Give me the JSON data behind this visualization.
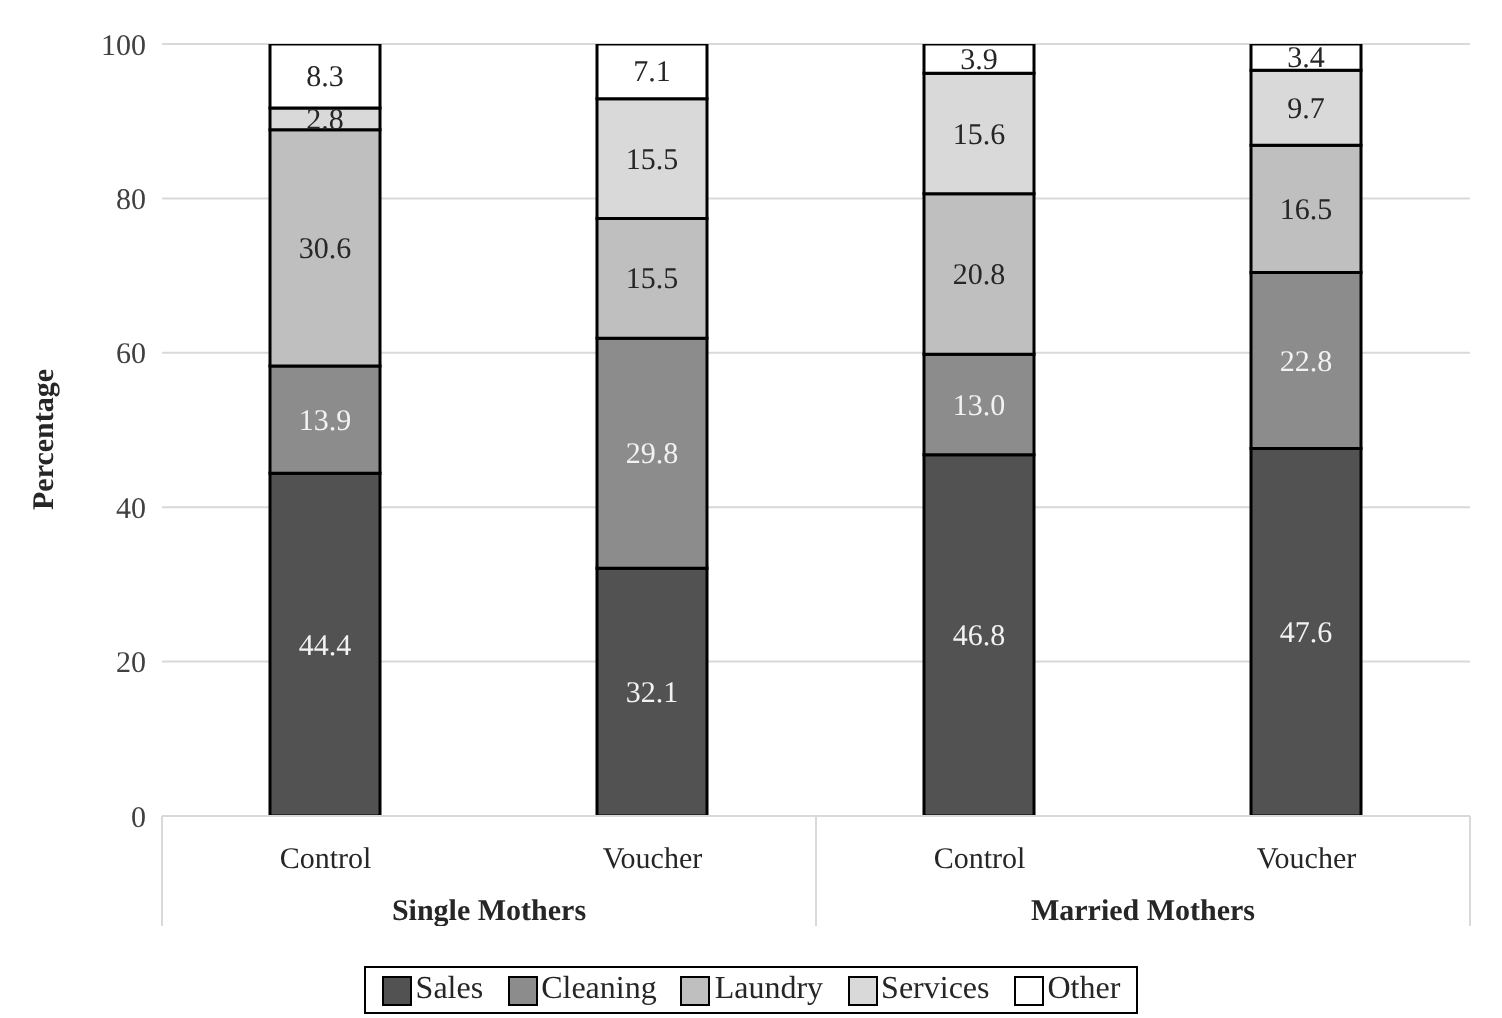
{
  "chart_data": {
    "type": "bar",
    "stacked": true,
    "ylabel": "Percentage",
    "categories": [
      "Control",
      "Voucher",
      "Control",
      "Voucher"
    ],
    "annotations": [
      "Single Mothers",
      "Married Mothers"
    ],
    "series": [
      {
        "name": "Sales",
        "color": "#525252",
        "values": [
          44.4,
          32.1,
          46.8,
          47.6
        ],
        "value_labels": [
          "44.4",
          "32.1",
          "46.8",
          "47.6"
        ]
      },
      {
        "name": "Cleaning",
        "color": "#8c8c8c",
        "values": [
          13.9,
          29.8,
          13.0,
          22.8
        ],
        "value_labels": [
          "13.9",
          "29.8",
          "13.0",
          "22.8"
        ]
      },
      {
        "name": "Laundry",
        "color": "#bfbfbf",
        "values": [
          30.6,
          15.5,
          20.8,
          16.5
        ],
        "value_labels": [
          "30.6",
          "15.5",
          "20.8",
          "16.5"
        ]
      },
      {
        "name": "Services",
        "color": "#d9d9d9",
        "values": [
          2.8,
          15.5,
          15.6,
          9.7
        ],
        "value_labels": [
          "2.8",
          "15.5",
          "15.6",
          "9.7"
        ]
      },
      {
        "name": "Other",
        "color": "#ffffff",
        "values": [
          8.3,
          7.1,
          3.9,
          3.4
        ],
        "value_labels": [
          "8.3",
          "7.1",
          "3.9",
          "3.4"
        ]
      }
    ],
    "ylim": [
      0,
      100
    ],
    "yticks": [
      0,
      20,
      40,
      60,
      80,
      100
    ],
    "grid": "y",
    "legend": "bottom"
  }
}
